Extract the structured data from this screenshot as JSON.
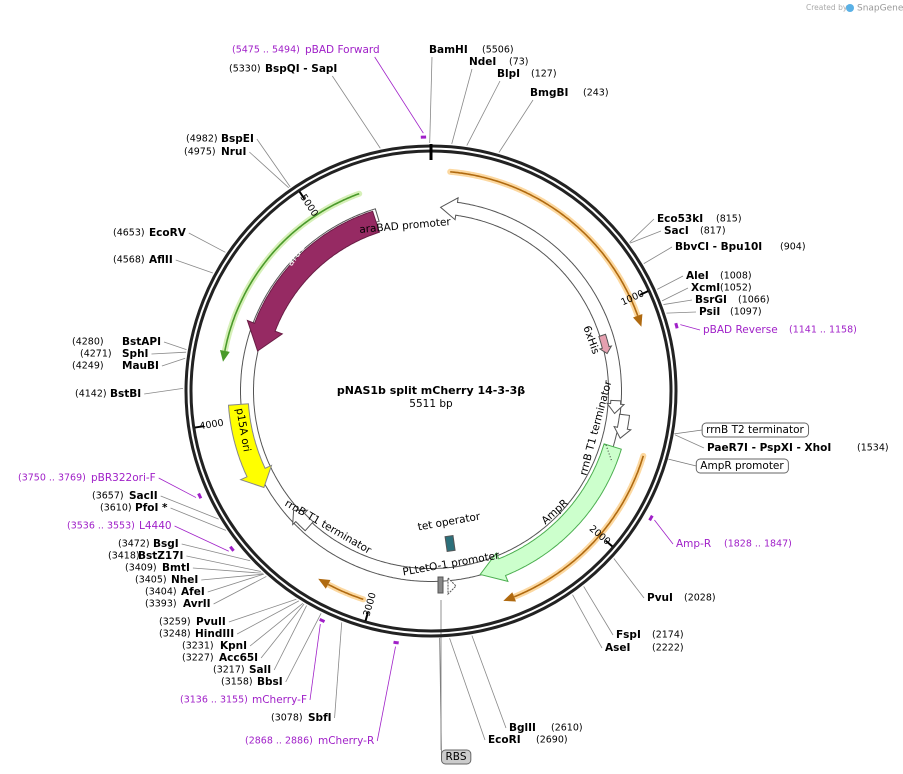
{
  "header": {
    "created_by": "Created by",
    "brand": "SnapGene"
  },
  "plasmid": {
    "name": "pNAS1b split mCherry 14-3-3β",
    "length": "5511 bp"
  },
  "sites": [
    {
      "name": "BamHI",
      "position": "(5506)"
    },
    {
      "name": "NdeI",
      "position": "(73)"
    },
    {
      "name": "BlpI",
      "position": "(127)"
    },
    {
      "name": "BmgBI",
      "position": "(243)"
    },
    {
      "name": "Eco53kI",
      "position": "(815)"
    },
    {
      "name": "SacI",
      "position": "(817)"
    },
    {
      "name": "BbvCI  - Bpu10I",
      "position": "(904)"
    },
    {
      "name": "AleI",
      "position": "(1008)"
    },
    {
      "name": "XcmI",
      "position": "(1052)"
    },
    {
      "name": "BsrGI",
      "position": "(1066)"
    },
    {
      "name": "PsiI",
      "position": "(1097)"
    },
    {
      "name": "PaeR7I  - PspXI  - XhoI",
      "position": "(1534)"
    },
    {
      "name": "PvuI",
      "position": "(2028)"
    },
    {
      "name": "FspI",
      "position": "(2174)"
    },
    {
      "name": "AseI",
      "position": "(2222)"
    },
    {
      "name": "BglII",
      "position": "(2610)"
    },
    {
      "name": "EcoRI",
      "position": "(2690)"
    },
    {
      "name": "BspQI  - SapI",
      "position": "(5330)"
    },
    {
      "name": "BspEI",
      "position": "(4982)"
    },
    {
      "name": "NruI",
      "position": "(4975)"
    },
    {
      "name": "EcoRV",
      "position": "(4653)"
    },
    {
      "name": "AflII",
      "position": "(4568)"
    },
    {
      "name": "BstAPI",
      "position": "(4280)"
    },
    {
      "name": "SphI",
      "position": "(4271)"
    },
    {
      "name": "MauBI",
      "position": "(4249)"
    },
    {
      "name": "BstBI",
      "position": "(4142)"
    },
    {
      "name": "SacII",
      "position": "(3657)"
    },
    {
      "name": "PfoI *",
      "position": "(3610)"
    },
    {
      "name": "BsgI",
      "position": "(3472)"
    },
    {
      "name": "BstZ17I",
      "position": "(3418)"
    },
    {
      "name": "BmtI",
      "position": "(3409)"
    },
    {
      "name": "NheI",
      "position": "(3405)"
    },
    {
      "name": "AfeI",
      "position": "(3404)"
    },
    {
      "name": "AvrII",
      "position": "(3393)"
    },
    {
      "name": "PvuII",
      "position": "(3259)"
    },
    {
      "name": "HindIII",
      "position": "(3248)"
    },
    {
      "name": "KpnI",
      "position": "(3231)"
    },
    {
      "name": "Acc65I",
      "position": "(3227)"
    },
    {
      "name": "SalI",
      "position": "(3217)"
    },
    {
      "name": "BbsI",
      "position": "(3158)"
    },
    {
      "name": "SbfI",
      "position": "(3078)"
    }
  ],
  "primers": [
    {
      "name": "pBAD Forward",
      "position": "(5475 .. 5494)"
    },
    {
      "name": "pBAD Reverse",
      "position": "(1141 .. 1158)"
    },
    {
      "name": "Amp-R",
      "position": "(1828 .. 1847)"
    },
    {
      "name": "pBR322ori-F",
      "position": "(3750 .. 3769)"
    },
    {
      "name": "L4440",
      "position": "(3536 .. 3553)"
    },
    {
      "name": "mCherry-F",
      "position": "(3136 .. 3155)"
    },
    {
      "name": "mCherry-R",
      "position": "(2868 .. 2886)"
    }
  ],
  "features": [
    "araBAD promoter",
    "araC",
    "p15A ori",
    "rrnB T1 terminator",
    "tet operator",
    "PLtetO-1 promoter",
    "AmpR",
    "rrnB T1 terminator",
    "6xHis",
    "rrnB T2 terminator",
    "AmpR promoter",
    "RBS"
  ],
  "ruler": [
    "1000",
    "2000",
    "3000",
    "4000",
    "5000"
  ]
}
